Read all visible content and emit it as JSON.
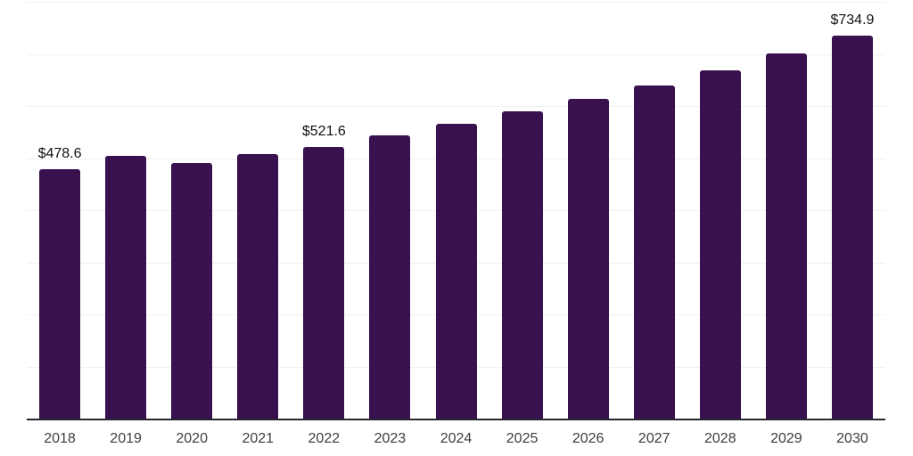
{
  "chart_data": {
    "type": "bar",
    "title": "",
    "xlabel": "",
    "ylabel": "",
    "categories": [
      "2018",
      "2019",
      "2020",
      "2021",
      "2022",
      "2023",
      "2024",
      "2025",
      "2026",
      "2027",
      "2028",
      "2029",
      "2030"
    ],
    "values": [
      478.6,
      505,
      490,
      508,
      521.6,
      543,
      566,
      589,
      613,
      640,
      669,
      701,
      734.9
    ],
    "data_labels": [
      {
        "index": 0,
        "text": "$478.6"
      },
      {
        "index": 4,
        "text": "$521.6"
      },
      {
        "index": 12,
        "text": "$734.9"
      }
    ],
    "ylim": [
      0,
      800
    ],
    "gridline_step": 100,
    "grid": "horizontal",
    "legend": "none",
    "colors": {
      "bar": "#38114E",
      "gridline": "#f0f0f1",
      "axis": "#27272f",
      "value_label": "#111111",
      "tick_label": "#3d3d3d",
      "background": "#ffffff"
    }
  }
}
